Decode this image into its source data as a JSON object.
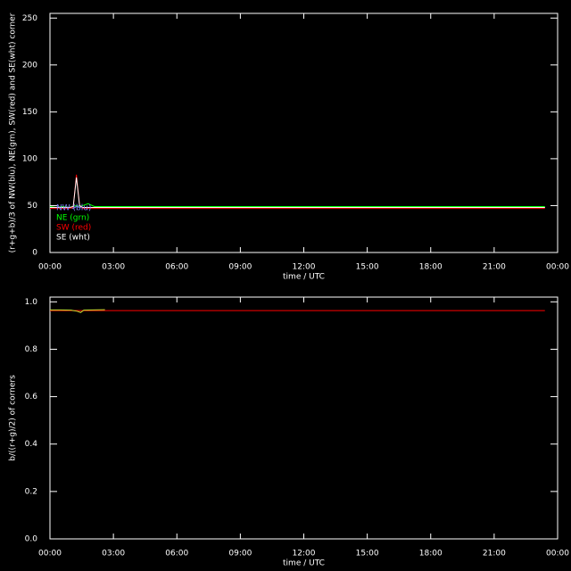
{
  "chart_data": [
    {
      "type": "line",
      "ylabel": "(r+g+b)/3 of NW(blu), NE(grn), SW(red) and SE(wht) corner",
      "xlabel": "time / UTC",
      "x": [
        0,
        0.3,
        0.6,
        0.9,
        1.1,
        1.25,
        1.4,
        1.55,
        1.8,
        2.1,
        2.6,
        6,
        12,
        18,
        23.4
      ],
      "series": [
        {
          "name": "NW (blu)",
          "color": "#8080ff",
          "values": [
            48,
            48,
            48,
            48,
            47,
            49,
            48,
            48,
            48,
            48,
            48,
            48,
            48,
            48,
            48
          ]
        },
        {
          "name": "NE (grn)",
          "color": "#00ff00",
          "values": [
            49,
            48,
            49,
            48,
            49,
            50,
            49,
            50,
            52,
            49,
            49,
            49,
            49,
            49,
            49
          ]
        },
        {
          "name": "SW (red)",
          "color": "#ff0000",
          "values": [
            47,
            47,
            47,
            47,
            48,
            83,
            50,
            47,
            47,
            47,
            47,
            47,
            47,
            47,
            47
          ]
        },
        {
          "name": "SE (wht)",
          "color": "#ffffff",
          "values": [
            48,
            48,
            48,
            48,
            49,
            80,
            50,
            48,
            48,
            48,
            48,
            48,
            48,
            48,
            48
          ]
        }
      ],
      "xlim": [
        0,
        24
      ],
      "xticks": [
        {
          "value": 0,
          "label": "00:00"
        },
        {
          "value": 3,
          "label": "03:00"
        },
        {
          "value": 6,
          "label": "06:00"
        },
        {
          "value": 9,
          "label": "09:00"
        },
        {
          "value": 12,
          "label": "12:00"
        },
        {
          "value": 15,
          "label": "15:00"
        },
        {
          "value": 18,
          "label": "18:00"
        },
        {
          "value": 21,
          "label": "21:00"
        },
        {
          "value": 24,
          "label": "00:00"
        }
      ],
      "ylim": [
        0,
        255
      ],
      "yticks": [
        0,
        50,
        100,
        150,
        200,
        250
      ],
      "legend": "lower-left"
    },
    {
      "type": "line",
      "ylabel": "b/((r+g)/2) of corners",
      "xlabel": "time / UTC",
      "x": [
        0,
        0.5,
        1.0,
        1.3,
        1.45,
        1.6,
        2.0,
        2.6,
        6,
        12,
        18,
        23.4
      ],
      "series": [
        {
          "color": "#ff0000",
          "values": [
            0.963,
            0.963,
            0.963,
            0.963,
            0.963,
            0.963,
            0.963,
            0.963,
            0.963,
            0.963,
            0.963,
            0.963
          ]
        },
        {
          "color": "#c8e632",
          "values": [
            0.966,
            0.966,
            0.965,
            0.96,
            0.955,
            0.965,
            0.966,
            0.967,
            null,
            null,
            null,
            null
          ]
        }
      ],
      "xlim": [
        0,
        24
      ],
      "xticks": [
        {
          "value": 0,
          "label": "00:00"
        },
        {
          "value": 3,
          "label": "03:00"
        },
        {
          "value": 6,
          "label": "06:00"
        },
        {
          "value": 9,
          "label": "09:00"
        },
        {
          "value": 12,
          "label": "12:00"
        },
        {
          "value": 15,
          "label": "15:00"
        },
        {
          "value": 18,
          "label": "18:00"
        },
        {
          "value": 21,
          "label": "21:00"
        },
        {
          "value": 24,
          "label": "00:00"
        }
      ],
      "ylim": [
        0,
        1.02
      ],
      "yticks": [
        {
          "value": 0,
          "label": "0.0"
        },
        0.2,
        0.4,
        0.6,
        0.8,
        {
          "value": 1,
          "label": "1.0"
        }
      ]
    }
  ]
}
